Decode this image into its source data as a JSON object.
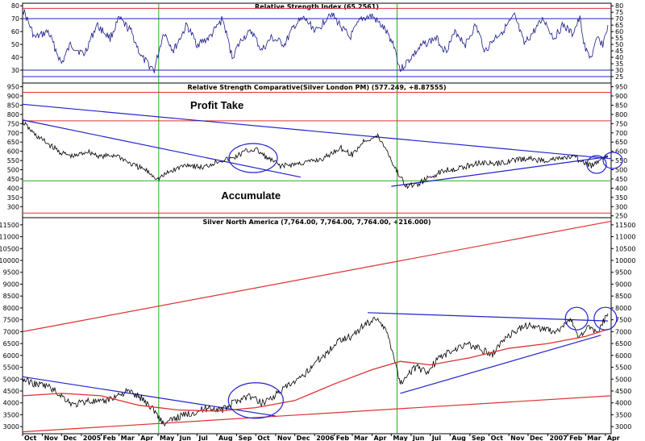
{
  "colors": {
    "price": "#000000",
    "trend": "#2222cc",
    "level": "#e03030",
    "vertical": "#22aa22",
    "frame": "#000000"
  },
  "x_axis": {
    "labels": [
      "Oct",
      "Nov",
      "Dec",
      "2005",
      "Feb",
      "Mar",
      "Apr",
      "May",
      "Jun",
      "Jul",
      "Aug",
      "Sep",
      "Oct",
      "Nov",
      "Dec",
      "2006",
      "Feb",
      "Mar",
      "Apr",
      "May",
      "Jun",
      "Jul",
      "Aug",
      "Sep",
      "Oct",
      "Nov",
      "Dec",
      "2007",
      "Feb",
      "Mar",
      "Apr"
    ],
    "start": "2004-10-01",
    "end": "2007-04-10"
  },
  "chart_data": [
    {
      "type": "line",
      "title": "Relative Strength Index (65.2561)",
      "ylim": [
        20,
        82
      ],
      "yticks": [
        20,
        25,
        30,
        35,
        40,
        45,
        50,
        55,
        60,
        65,
        70,
        75,
        80
      ],
      "ytick_labels_left": [
        "20",
        "30",
        "40",
        "50",
        "60",
        "70",
        "80"
      ],
      "levels": [
        25,
        30,
        70,
        78
      ],
      "vlines": [
        "2005-05-02",
        "2006-05-10"
      ],
      "series": [
        {
          "x": [
            "2004-10-01",
            "2004-10-20",
            "2004-11-10",
            "2004-12-01",
            "2004-12-15",
            "2005-01-05",
            "2005-01-25",
            "2005-02-15",
            "2005-03-01",
            "2005-03-20",
            "2005-04-05",
            "2005-04-25",
            "2005-05-10",
            "2005-05-25",
            "2005-06-15",
            "2005-07-01",
            "2005-07-20",
            "2005-08-10",
            "2005-08-25",
            "2005-09-10",
            "2005-09-25",
            "2005-10-10",
            "2005-10-25",
            "2005-11-15",
            "2005-12-01",
            "2005-12-15",
            "2006-01-05",
            "2006-01-25",
            "2006-02-10",
            "2006-02-25",
            "2006-03-15",
            "2006-04-01",
            "2006-04-20",
            "2006-05-05",
            "2006-05-15",
            "2006-06-01",
            "2006-06-20",
            "2006-07-10",
            "2006-07-25",
            "2006-08-10",
            "2006-08-25",
            "2006-09-10",
            "2006-09-25",
            "2006-10-10",
            "2006-10-25",
            "2006-11-10",
            "2006-11-25",
            "2006-12-10",
            "2006-12-25",
            "2007-01-10",
            "2007-01-25",
            "2007-02-08",
            "2007-02-20",
            "2007-03-01",
            "2007-03-10",
            "2007-03-20",
            "2007-03-28",
            "2007-04-05"
          ],
          "values": [
            78,
            55,
            60,
            35,
            50,
            42,
            65,
            55,
            70,
            60,
            40,
            30,
            60,
            45,
            65,
            50,
            55,
            70,
            40,
            55,
            60,
            45,
            55,
            50,
            65,
            70,
            60,
            75,
            65,
            55,
            70,
            72,
            62,
            50,
            30,
            40,
            50,
            55,
            45,
            60,
            50,
            65,
            45,
            55,
            62,
            72,
            50,
            60,
            70,
            55,
            65,
            58,
            70,
            45,
            40,
            55,
            50,
            65
          ]
        }
      ]
    },
    {
      "type": "line",
      "title": "Relative Strength Comparative(Silver London PM) (577.249, +8.87555)",
      "ylim": [
        240,
        970
      ],
      "yticks": [
        250,
        300,
        350,
        400,
        450,
        500,
        550,
        600,
        650,
        700,
        750,
        800,
        850,
        900,
        950
      ],
      "ytick_labels_left": [
        "300",
        "350",
        "400",
        "450",
        "500",
        "550",
        "600",
        "650",
        "700",
        "750",
        "800",
        "850",
        "900",
        "950"
      ],
      "levels": [
        265,
        440,
        765,
        920
      ],
      "vlines": [
        "2005-05-02",
        "2006-05-10"
      ],
      "trendlines": [
        {
          "x": [
            "2004-10-01",
            "2007-04-10"
          ],
          "y": [
            855,
            560
          ]
        },
        {
          "x": [
            "2004-10-01",
            "2005-12-10"
          ],
          "y": [
            770,
            460
          ]
        },
        {
          "x": [
            "2006-05-01",
            "2007-04-05"
          ],
          "y": [
            410,
            570
          ]
        }
      ],
      "annotations": [
        {
          "text": "Profit Take",
          "x": "2005-05-01",
          "y": 830
        },
        {
          "text": "Accumulate",
          "x": "2005-07-01",
          "y": 340
        }
      ],
      "series": [
        {
          "x": [
            "2004-10-01",
            "2004-10-20",
            "2004-11-10",
            "2004-12-01",
            "2004-12-20",
            "2005-01-10",
            "2005-02-01",
            "2005-02-25",
            "2005-03-20",
            "2005-04-10",
            "2005-05-01",
            "2005-05-20",
            "2005-06-15",
            "2005-07-10",
            "2005-08-05",
            "2005-08-25",
            "2005-09-15",
            "2005-10-01",
            "2005-10-20",
            "2005-11-10",
            "2005-12-01",
            "2005-12-20",
            "2006-01-15",
            "2006-02-10",
            "2006-03-01",
            "2006-03-20",
            "2006-04-10",
            "2006-04-25",
            "2006-05-05",
            "2006-05-15",
            "2006-05-25",
            "2006-06-10",
            "2006-07-01",
            "2006-07-25",
            "2006-08-20",
            "2006-09-15",
            "2006-10-10",
            "2006-11-05",
            "2006-12-01",
            "2006-12-25",
            "2007-01-20",
            "2007-02-10",
            "2007-02-25",
            "2007-03-10",
            "2007-03-25",
            "2007-04-05"
          ],
          "values": [
            760,
            690,
            640,
            590,
            570,
            600,
            570,
            580,
            530,
            500,
            450,
            490,
            530,
            510,
            550,
            560,
            600,
            610,
            560,
            520,
            530,
            540,
            560,
            620,
            580,
            660,
            680,
            600,
            520,
            460,
            410,
            420,
            460,
            500,
            510,
            540,
            530,
            550,
            560,
            550,
            560,
            570,
            540,
            520,
            560,
            577
          ]
        }
      ]
    },
    {
      "type": "line",
      "title": "Silver North America (7,764.00, 7,764.00, 7,764.00, +216.000)",
      "ylim": [
        2700,
        11800
      ],
      "yticks": [
        3000,
        3500,
        4000,
        4500,
        5000,
        5500,
        6000,
        6500,
        7000,
        7500,
        8000,
        8500,
        9000,
        9500,
        10000,
        10500,
        11000,
        11500
      ],
      "ytick_labels_left": [
        "3000",
        "3500",
        "4000",
        "4500",
        "5000",
        "5500",
        "6000",
        "6500",
        "7000",
        "7500",
        "8000",
        "8500",
        "9000",
        "9500",
        "10000",
        "10500",
        "11000",
        "11500"
      ],
      "vlines": [
        "2005-05-02",
        "2006-05-10"
      ],
      "trendlines_red": [
        {
          "x": [
            "2004-10-01",
            "2007-04-10"
          ],
          "y": [
            7000,
            11650
          ]
        },
        {
          "x": [
            "2004-10-01",
            "2007-04-10"
          ],
          "y": [
            2780,
            4300
          ]
        }
      ],
      "trendlines_blue": [
        {
          "x": [
            "2004-10-01",
            "2005-11-01"
          ],
          "y": [
            5100,
            3450
          ]
        },
        {
          "x": [
            "2006-03-25",
            "2007-04-05"
          ],
          "y": [
            7800,
            7450
          ]
        },
        {
          "x": [
            "2006-05-15",
            "2007-03-25"
          ],
          "y": [
            4400,
            6850
          ]
        }
      ],
      "series": [
        {
          "name": "",
          "x": [
            "2004-10-01",
            "2004-10-20",
            "2004-11-10",
            "2004-12-01",
            "2004-12-20",
            "2005-01-10",
            "2005-02-01",
            "2005-02-25",
            "2005-03-15",
            "2005-04-05",
            "2005-04-25",
            "2005-05-10",
            "2005-06-01",
            "2005-06-25",
            "2005-07-20",
            "2005-08-10",
            "2005-09-01",
            "2005-09-20",
            "2005-10-10",
            "2005-10-30",
            "2005-11-20",
            "2005-12-10",
            "2006-01-01",
            "2006-01-20",
            "2006-02-10",
            "2006-03-01",
            "2006-03-20",
            "2006-04-10",
            "2006-04-25",
            "2006-05-05",
            "2006-05-15",
            "2006-05-25",
            "2006-06-10",
            "2006-06-25",
            "2006-07-15",
            "2006-08-05",
            "2006-08-25",
            "2006-09-15",
            "2006-10-05",
            "2006-10-25",
            "2006-11-15",
            "2006-12-05",
            "2006-12-25",
            "2007-01-15",
            "2007-02-05",
            "2007-02-20",
            "2007-03-05",
            "2007-03-20",
            "2007-04-05"
          ],
          "values": [
            5000,
            4800,
            4700,
            4300,
            3900,
            4100,
            4000,
            4300,
            4500,
            4200,
            3700,
            3100,
            3400,
            3600,
            3800,
            3700,
            4100,
            4300,
            4000,
            4300,
            4700,
            5000,
            5700,
            6100,
            6700,
            6800,
            7300,
            7600,
            6900,
            6000,
            4800,
            5200,
            5500,
            5300,
            5900,
            6200,
            6500,
            6300,
            6000,
            6700,
            7100,
            7300,
            7100,
            7000,
            7500,
            6700,
            7200,
            7000,
            7764
          ]
        },
        {
          "name": "",
          "x": [
            "2004-10-01",
            "2004-12-01",
            "2005-02-01",
            "2005-04-01",
            "2005-06-01",
            "2005-08-01",
            "2005-10-01",
            "2005-12-01",
            "2006-02-01",
            "2006-04-01",
            "2006-05-15",
            "2006-07-01",
            "2006-09-01",
            "2006-11-01",
            "2007-01-01",
            "2007-03-01",
            "2007-04-05"
          ],
          "values": [
            4300,
            4400,
            4300,
            3900,
            3700,
            3650,
            3800,
            4100,
            4800,
            5400,
            5750,
            5600,
            5900,
            6300,
            6500,
            6800,
            7100
          ]
        }
      ],
      "circles": [
        {
          "x": "2005-10-01",
          "y": 4100
        },
        {
          "x": "2007-02-15",
          "y": 7550
        },
        {
          "x": "2007-04-01",
          "y": 7550
        }
      ]
    }
  ]
}
